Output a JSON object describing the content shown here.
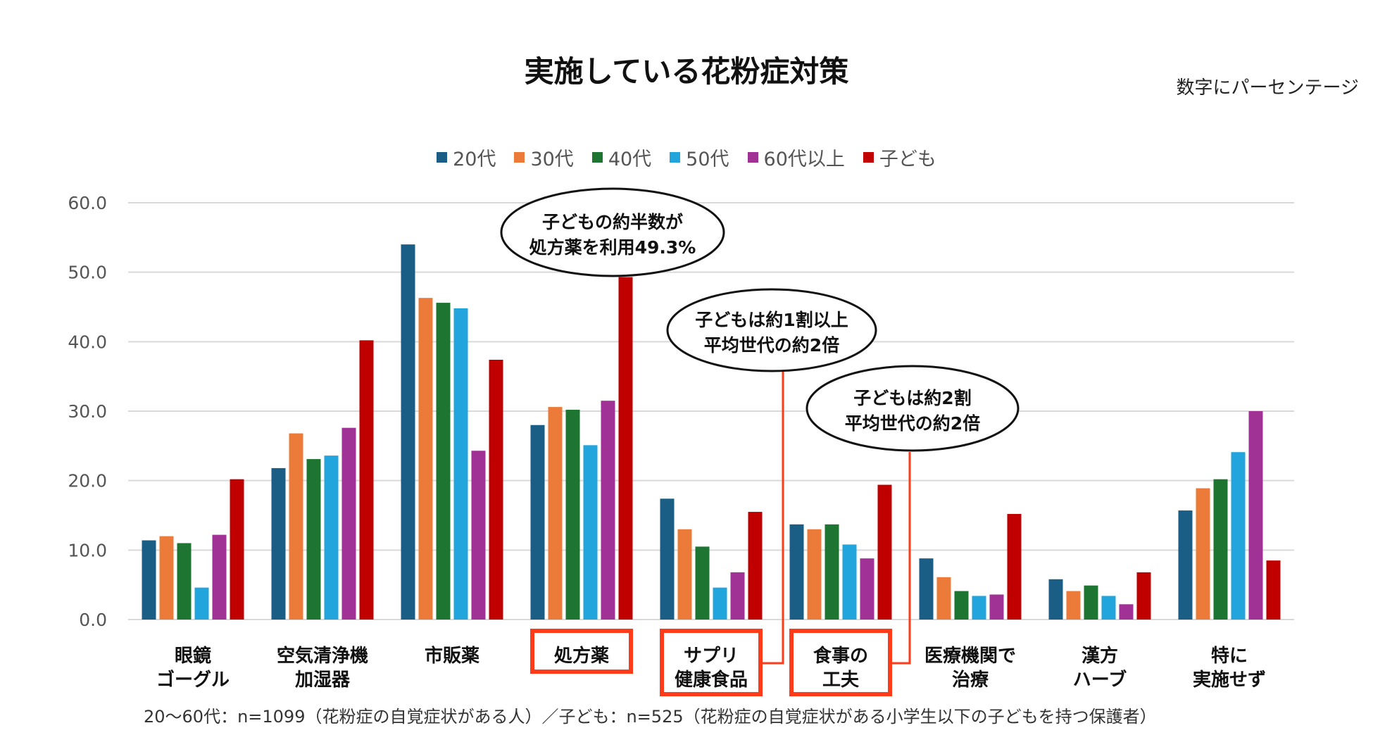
{
  "chart_data": {
    "type": "bar",
    "title": "実施している花粉症対策",
    "unit_note": "数字にパーセンテージ",
    "ylim": [
      0,
      60
    ],
    "yticks": [
      "0.0",
      "10.0",
      "20.0",
      "30.0",
      "40.0",
      "50.0",
      "60.0"
    ],
    "categories": [
      [
        "眼鏡",
        "ゴーグル"
      ],
      [
        "空気清浄機",
        "加湿器"
      ],
      [
        "市販薬"
      ],
      [
        "処方薬"
      ],
      [
        "サプリ",
        "健康食品"
      ],
      [
        "食事の",
        "工夫"
      ],
      [
        "医療機関で",
        "治療"
      ],
      [
        "漢方",
        "ハーブ"
      ],
      [
        "特に",
        "実施せず"
      ]
    ],
    "highlighted_categories": [
      3,
      4,
      5
    ],
    "series": [
      {
        "name": "20代",
        "color": "#1a5e86",
        "values": [
          11.4,
          21.8,
          54.0,
          28.0,
          17.4,
          13.7,
          8.8,
          5.8,
          15.7
        ]
      },
      {
        "name": "30代",
        "color": "#ec7b3a",
        "values": [
          12.0,
          26.8,
          46.3,
          30.6,
          13.0,
          13.0,
          6.1,
          4.1,
          18.9
        ]
      },
      {
        "name": "40代",
        "color": "#1e7431",
        "values": [
          11.0,
          23.1,
          45.6,
          30.2,
          10.5,
          13.7,
          4.1,
          4.9,
          20.2
        ]
      },
      {
        "name": "50代",
        "color": "#22a5dd",
        "values": [
          4.6,
          23.6,
          44.8,
          25.1,
          4.6,
          10.8,
          3.4,
          3.4,
          24.1
        ]
      },
      {
        "name": "60代以上",
        "color": "#a13295",
        "values": [
          12.2,
          27.6,
          24.3,
          31.5,
          6.8,
          8.8,
          3.6,
          2.2,
          30.0
        ]
      },
      {
        "name": "子ども",
        "color": "#c00000",
        "values": [
          20.2,
          40.2,
          37.4,
          49.3,
          15.5,
          19.4,
          15.2,
          6.8,
          8.5
        ]
      }
    ],
    "annotations": [
      {
        "lines": [
          "子どもの約半数が",
          "処方薬を利用49.3%"
        ]
      },
      {
        "lines": [
          "子どもは約1割以上",
          "平均世代の約2倍"
        ]
      },
      {
        "lines": [
          "子どもは約2割",
          "平均世代の約2倍"
        ]
      }
    ],
    "footnote": "20〜60代：n=1099（花粉症の自覚症状がある人）／子ども：n=525（花粉症の自覚症状がある小学生以下の子どもを持つ保護者）"
  }
}
